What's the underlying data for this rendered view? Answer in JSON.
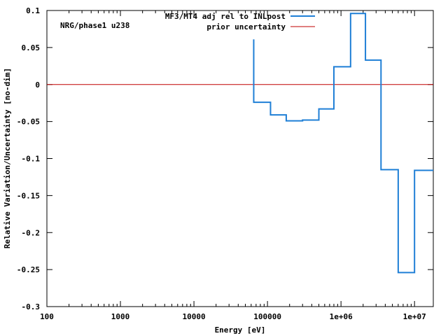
{
  "chart_data": {
    "type": "line",
    "step": true,
    "annotation": "NRG/phase1 u238",
    "xlabel": "Energy [eV]",
    "ylabel": "Relative Variation/Uncertainty [no-dim]",
    "xscale": "log",
    "xlim": [
      100,
      18000000
    ],
    "ylim": [
      -0.3,
      0.1
    ],
    "grid": false,
    "legend_position": "top-right",
    "x_ticks": [
      {
        "value": 100,
        "label": "100"
      },
      {
        "value": 1000,
        "label": "1000"
      },
      {
        "value": 10000,
        "label": "10000"
      },
      {
        "value": 100000,
        "label": "100000"
      },
      {
        "value": 1000000,
        "label": "1e+06"
      },
      {
        "value": 10000000,
        "label": "1e+07"
      }
    ],
    "y_ticks": [
      {
        "value": 0.1,
        "label": "0.1"
      },
      {
        "value": 0.05,
        "label": "0.05"
      },
      {
        "value": 0,
        "label": "0"
      },
      {
        "value": -0.05,
        "label": "-0.05"
      },
      {
        "value": -0.1,
        "label": "-0.1"
      },
      {
        "value": -0.15,
        "label": "-0.15"
      },
      {
        "value": -0.2,
        "label": "-0.2"
      },
      {
        "value": -0.25,
        "label": "-0.25"
      },
      {
        "value": -0.3,
        "label": "-0.3"
      }
    ],
    "series": [
      {
        "name": "MF3/MT4 adj rel to INLpost",
        "color": "#1f7fd6",
        "bin_edges": [
          65000,
          110000,
          180000,
          300000,
          500000,
          800000,
          1350000,
          2150000,
          3500000,
          6000000,
          10000000,
          18000000
        ],
        "values": [
          -0.024,
          -0.041,
          -0.049,
          -0.048,
          -0.033,
          0.024,
          0.096,
          0.033,
          -0.115,
          -0.254,
          -0.116
        ],
        "start_value": 0.061
      },
      {
        "name": "prior uncertainty",
        "color": "#c00000",
        "x": [
          100,
          18000000
        ],
        "values": [
          0,
          0
        ]
      }
    ]
  }
}
